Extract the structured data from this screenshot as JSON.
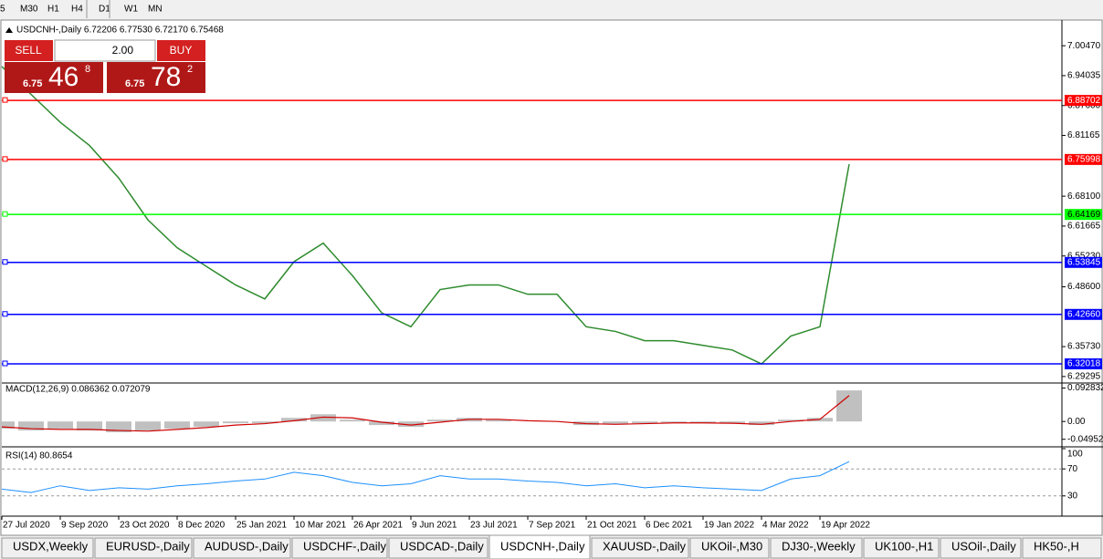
{
  "toolbar": [
    "5",
    "M30",
    "H1",
    "H4",
    "D1",
    "W1",
    "MN"
  ],
  "trade_panel": {
    "sell": "SELL",
    "buy": "BUY",
    "lots": "2.00",
    "bid": [
      "6.75",
      "46",
      "8"
    ],
    "ask": [
      "6.75",
      "78",
      "2"
    ]
  },
  "chart_data": [
    {
      "type": "line",
      "title": "USDCNH-,Daily  6.72206 6.77530 6.72170 6.75468",
      "categories": [
        "27 Jul 2020",
        null,
        "9 Sep 2020",
        null,
        "23 Oct 2020",
        null,
        "8 Dec 2020",
        null,
        "25 Jan 2021",
        null,
        "10 Mar 2021",
        null,
        "26 Apr 2021",
        null,
        "9 Jun 2021",
        null,
        "23 Jul 2021",
        null,
        "7 Sep 2021",
        null,
        "21 Oct 2021",
        null,
        "6 Dec 2021",
        null,
        "19 Jan 2022",
        null,
        "4 Mar 2022",
        null,
        "19 Apr 2022",
        null
      ],
      "values": [
        6.96,
        6.9,
        6.84,
        6.79,
        6.72,
        6.63,
        6.57,
        6.53,
        6.49,
        6.46,
        6.54,
        6.58,
        6.51,
        6.43,
        6.4,
        6.48,
        6.49,
        6.49,
        6.47,
        6.47,
        6.4,
        6.39,
        6.37,
        6.37,
        6.36,
        6.35,
        6.32,
        6.38,
        6.4,
        6.75
      ],
      "color": "#2e8b2e",
      "ylim": [
        6.279,
        7.056
      ],
      "yticks": [
        {
          "value": 7.0047,
          "label": "7.00470"
        },
        6.94035,
        {
          "value": 6.876,
          "label": "6.87600"
        },
        6.81165,
        {
          "value": 6.681,
          "label": "6.68100"
        },
        6.61665,
        {
          "value": 6.5523,
          "label": "6.55230"
        },
        {
          "value": 6.486,
          "label": "6.48600"
        },
        {
          "value": 6.3573,
          "label": "6.35730"
        },
        6.29295
      ],
      "levels": [
        6.88702,
        6.75998,
        6.64169,
        6.53845,
        {
          "value": 6.4266,
          "label": "6.42660"
        },
        6.32018
      ],
      "level_colors": [
        "#ff0000",
        "#ff0000",
        "#00ff00",
        "#0000ff",
        "#0000ff",
        "#0000ff"
      ]
    },
    {
      "type": "macd",
      "title": "MACD(12,26,9) 0.086362 0.072079",
      "values": [
        -0.02,
        -0.025,
        -0.02,
        -0.025,
        -0.03,
        -0.025,
        -0.02,
        -0.015,
        -0.005,
        -0.005,
        0.01,
        0.02,
        0.005,
        -0.01,
        -0.015,
        0.005,
        0.01,
        0.005,
        0,
        0,
        -0.01,
        -0.008,
        -0.005,
        -0.003,
        -0.004,
        -0.006,
        -0.01,
        0.005,
        0.01,
        0.086362
      ],
      "signal": [
        -0.015,
        -0.02,
        -0.022,
        -0.022,
        -0.025,
        -0.027,
        -0.022,
        -0.017,
        -0.01,
        -0.006,
        0.002,
        0.012,
        0.01,
        -0.002,
        -0.01,
        -0.002,
        0.006,
        0.006,
        0.002,
        0,
        -0.006,
        -0.008,
        -0.006,
        -0.004,
        -0.004,
        -0.005,
        -0.008,
        0,
        0.006,
        0.072079
      ],
      "color": "#c0c0c0",
      "signal_color": "#d00000",
      "ylim": [
        -0.068,
        0.1044
      ],
      "yticks": [
        0.092832,
        {
          "value": 0,
          "label": "0.00"
        },
        -0.049521
      ]
    },
    {
      "type": "rsi",
      "title": "RSI(14) 80.8654",
      "values": [
        40,
        35,
        45,
        38,
        42,
        40,
        45,
        48,
        52,
        55,
        65,
        60,
        50,
        45,
        48,
        60,
        55,
        55,
        52,
        50,
        45,
        48,
        42,
        45,
        42,
        40,
        38,
        55,
        60,
        80.8654
      ],
      "color": "#1e90ff",
      "ylim": [
        0,
        100
      ],
      "yticks": [
        100,
        70,
        30
      ]
    }
  ],
  "tabs": [
    "USDX,Weekly",
    "EURUSD-,Daily",
    "AUDUSD-,Daily",
    "USDCHF-,Daily",
    "USDCAD-,Daily",
    "USDCNH-,Daily",
    "XAUUSD-,Daily",
    "UKOil-,M30",
    "DJ30-,Weekly",
    "UK100-,H1",
    "USOil-,Daily",
    "HK50-,H"
  ],
  "active_tab": 5
}
